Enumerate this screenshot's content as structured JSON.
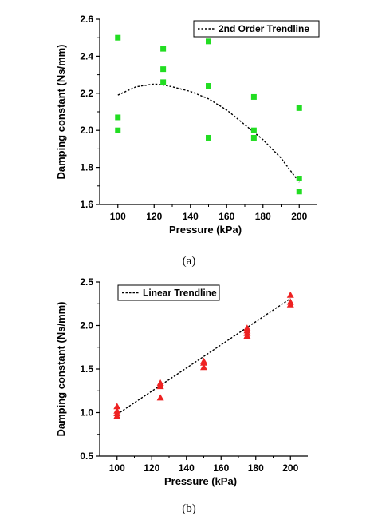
{
  "chart_data": [
    {
      "type": "scatter",
      "panel_label": "(a)",
      "xlabel": "Pressure (kPa)",
      "ylabel": "Damping constant (Ns/mm)",
      "xlim": [
        90,
        210
      ],
      "ylim": [
        1.6,
        2.6
      ],
      "xticks": [
        100,
        120,
        140,
        160,
        180,
        200
      ],
      "yticks": [
        1.6,
        1.8,
        2.0,
        2.2,
        2.4,
        2.6
      ],
      "xtick_labels": [
        "100",
        "120",
        "140",
        "160",
        "180",
        "200"
      ],
      "ytick_labels": [
        "1.6",
        "1.8",
        "2.0",
        "2.2",
        "2.4",
        "2.6"
      ],
      "grid": false,
      "legend_position": "top-right",
      "marker": "square",
      "marker_color": "#22dd22",
      "series": [
        {
          "points": [
            [
              100,
              2.5
            ],
            [
              100,
              2.07
            ],
            [
              100,
              2.0
            ],
            [
              125,
              2.44
            ],
            [
              125,
              2.33
            ],
            [
              125,
              2.26
            ],
            [
              150,
              2.48
            ],
            [
              150,
              2.24
            ],
            [
              150,
              1.96
            ],
            [
              175,
              2.18
            ],
            [
              175,
              2.0
            ],
            [
              175,
              1.96
            ],
            [
              200,
              2.12
            ],
            [
              200,
              1.74
            ],
            [
              200,
              1.67
            ]
          ]
        },
        {
          "name": "2nd Order Trendline",
          "kind": "trendline",
          "line_style": "dotted",
          "color": "#000000",
          "points": [
            [
              100,
              2.19
            ],
            [
              110,
              2.235
            ],
            [
              120,
              2.25
            ],
            [
              125,
              2.245
            ],
            [
              130,
              2.235
            ],
            [
              140,
              2.21
            ],
            [
              150,
              2.17
            ],
            [
              160,
              2.11
            ],
            [
              170,
              2.03
            ],
            [
              180,
              1.95
            ],
            [
              190,
              1.85
            ],
            [
              200,
              1.72
            ]
          ]
        }
      ]
    },
    {
      "type": "scatter",
      "panel_label": "(b)",
      "xlabel": "Pressure (kPa)",
      "ylabel": "Damping constant (Ns/mm)",
      "xlim": [
        90,
        210
      ],
      "ylim": [
        0.5,
        2.5
      ],
      "xticks": [
        100,
        120,
        140,
        160,
        180,
        200
      ],
      "yticks": [
        0.5,
        1.0,
        1.5,
        2.0,
        2.5
      ],
      "xtick_labels": [
        "100",
        "120",
        "140",
        "160",
        "180",
        "200"
      ],
      "ytick_labels": [
        "0.5",
        "1.0",
        "1.5",
        "2.0",
        "2.5"
      ],
      "grid": false,
      "legend_position": "top-left",
      "marker": "triangle",
      "marker_color": "#ee2222",
      "series": [
        {
          "points": [
            [
              100,
              1.07
            ],
            [
              100,
              1.02
            ],
            [
              100,
              0.99
            ],
            [
              100,
              0.96
            ],
            [
              125,
              1.34
            ],
            [
              125,
              1.32
            ],
            [
              125,
              1.3
            ],
            [
              125,
              1.17
            ],
            [
              150,
              1.59
            ],
            [
              150,
              1.57
            ],
            [
              150,
              1.52
            ],
            [
              175,
              1.97
            ],
            [
              175,
              1.94
            ],
            [
              175,
              1.91
            ],
            [
              175,
              1.88
            ],
            [
              200,
              2.35
            ],
            [
              200,
              2.27
            ],
            [
              200,
              2.24
            ]
          ]
        },
        {
          "name": "Linear Trendline",
          "kind": "trendline",
          "line_style": "dotted",
          "color": "#000000",
          "points": [
            [
              100,
              0.98
            ],
            [
              200,
              2.31
            ]
          ]
        }
      ]
    }
  ]
}
